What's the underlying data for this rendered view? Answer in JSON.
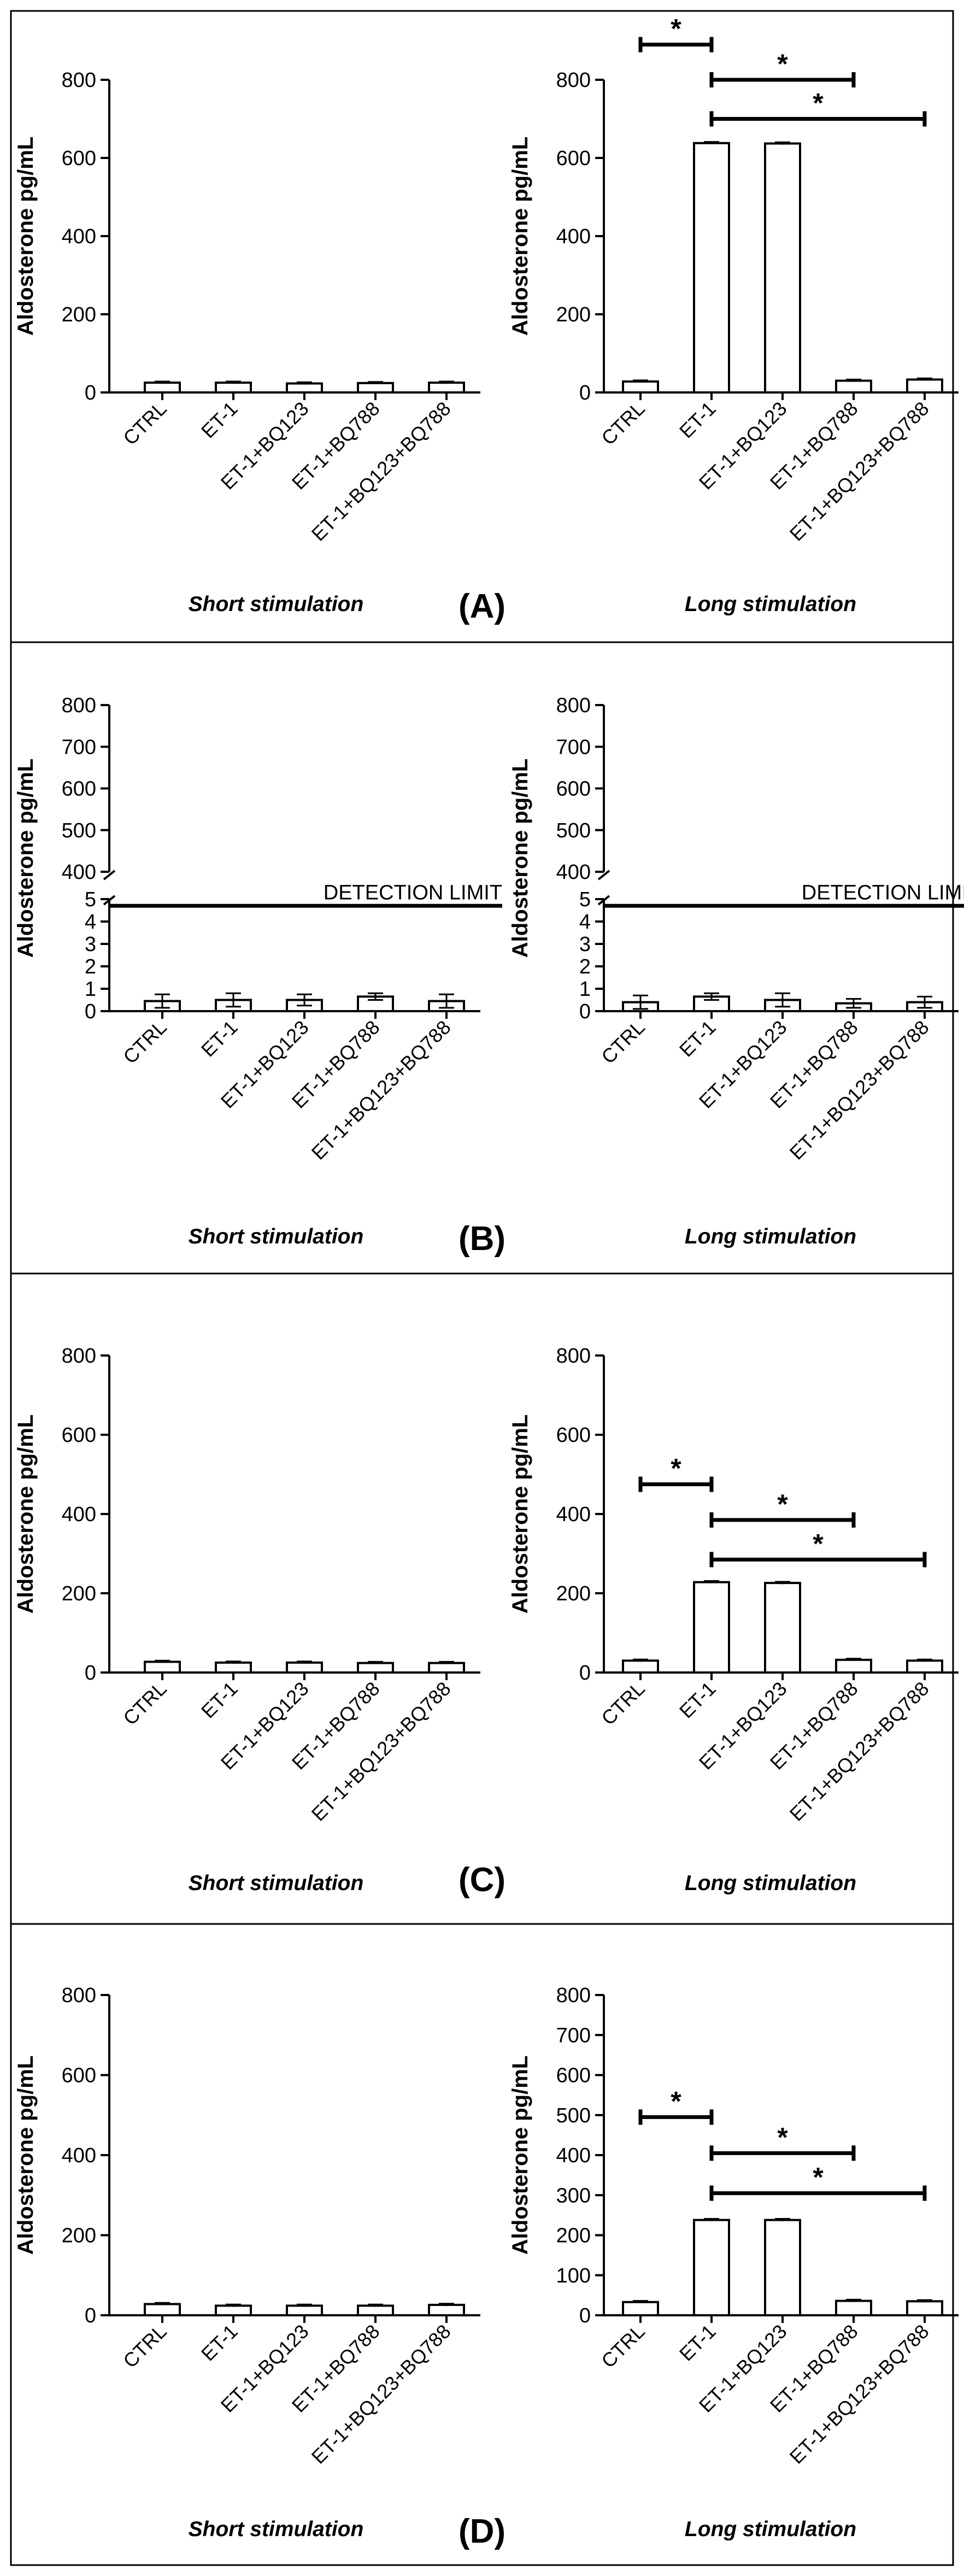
{
  "figure": {
    "ylabel": "Aldosterone pg/mL",
    "categories": [
      "CTRL",
      "ET-1",
      "ET-1+BQ123",
      "ET-1+BQ788",
      "ET-1+BQ123+BQ788"
    ],
    "short_label": "Short stimulation",
    "long_label": "Long stimulation",
    "detection_label": "DETECTION LIMIT",
    "star": "*"
  },
  "chart_data": [
    {
      "panel": "(A)",
      "charts": [
        {
          "type": "bar",
          "title": "Short stimulation",
          "ylabel": "Aldosterone pg/mL",
          "categories": [
            "CTRL",
            "ET-1",
            "ET-1+BQ123",
            "ET-1+BQ788",
            "ET-1+BQ123+BQ788"
          ],
          "values": [
            25,
            25,
            23,
            24,
            25
          ],
          "errors": [
            3,
            3,
            3,
            3,
            3
          ],
          "ylim": [
            0,
            800
          ],
          "yticks": [
            0,
            200,
            400,
            600,
            800
          ],
          "significance": []
        },
        {
          "type": "bar",
          "title": "Long stimulation",
          "ylabel": "Aldosterone pg/mL",
          "categories": [
            "CTRL",
            "ET-1",
            "ET-1+BQ123",
            "ET-1+BQ788",
            "ET-1+BQ123+BQ788"
          ],
          "values": [
            28,
            638,
            637,
            30,
            33
          ],
          "errors": [
            3,
            3,
            3,
            3,
            3
          ],
          "ylim": [
            0,
            800
          ],
          "yticks": [
            0,
            200,
            400,
            600,
            800
          ],
          "significance": [
            {
              "from": 0,
              "to": 1,
              "value": 890,
              "label": "*"
            },
            {
              "from": 1,
              "to": 3,
              "value": 800,
              "label": "*"
            },
            {
              "from": 1,
              "to": 4,
              "value": 700,
              "label": "*"
            }
          ]
        }
      ]
    },
    {
      "panel": "(B)",
      "charts": [
        {
          "type": "bar",
          "title": "Short stimulation",
          "ylabel": "Aldosterone pg/mL",
          "categories": [
            "CTRL",
            "ET-1",
            "ET-1+BQ123",
            "ET-1+BQ788",
            "ET-1+BQ123+BQ788"
          ],
          "values": [
            0.45,
            0.5,
            0.5,
            0.65,
            0.45
          ],
          "errors": [
            0.3,
            0.3,
            0.25,
            0.15,
            0.3
          ],
          "ylim": [
            0,
            800
          ],
          "axis_break": [
            5,
            400
          ],
          "yticks": [
            0,
            1,
            2,
            3,
            4,
            5,
            400,
            500,
            600,
            700,
            800
          ],
          "detection_limit": 4.7,
          "significance": []
        },
        {
          "type": "bar",
          "title": "Long stimulation",
          "ylabel": "Aldosterone pg/mL",
          "categories": [
            "CTRL",
            "ET-1",
            "ET-1+BQ123",
            "ET-1+BQ788",
            "ET-1+BQ123+BQ788"
          ],
          "values": [
            0.4,
            0.65,
            0.5,
            0.35,
            0.4
          ],
          "errors": [
            0.3,
            0.15,
            0.3,
            0.2,
            0.25
          ],
          "ylim": [
            0,
            800
          ],
          "axis_break": [
            5,
            400
          ],
          "yticks": [
            0,
            1,
            2,
            3,
            4,
            5,
            400,
            500,
            600,
            700,
            800
          ],
          "detection_limit": 4.7,
          "significance": []
        }
      ]
    },
    {
      "panel": "(C)",
      "charts": [
        {
          "type": "bar",
          "title": "Short stimulation",
          "ylabel": "Aldosterone pg/mL",
          "categories": [
            "CTRL",
            "ET-1",
            "ET-1+BQ123",
            "ET-1+BQ788",
            "ET-1+BQ123+BQ788"
          ],
          "values": [
            27,
            25,
            25,
            24,
            24
          ],
          "errors": [
            3,
            3,
            3,
            3,
            3
          ],
          "ylim": [
            0,
            800
          ],
          "yticks": [
            0,
            200,
            400,
            600,
            800
          ],
          "significance": []
        },
        {
          "type": "bar",
          "title": "Long stimulation",
          "ylabel": "Aldosterone pg/mL",
          "categories": [
            "CTRL",
            "ET-1",
            "ET-1+BQ123",
            "ET-1+BQ788",
            "ET-1+BQ123+BQ788"
          ],
          "values": [
            30,
            228,
            226,
            32,
            30
          ],
          "errors": [
            3,
            3,
            3,
            3,
            3
          ],
          "ylim": [
            0,
            800
          ],
          "yticks": [
            0,
            200,
            400,
            600,
            800
          ],
          "significance": [
            {
              "from": 0,
              "to": 1,
              "value": 475,
              "label": "*"
            },
            {
              "from": 1,
              "to": 3,
              "value": 385,
              "label": "*"
            },
            {
              "from": 1,
              "to": 4,
              "value": 285,
              "label": "*"
            }
          ]
        }
      ]
    },
    {
      "panel": "(D)",
      "charts": [
        {
          "type": "bar",
          "title": "Short stimulation",
          "ylabel": "Aldosterone pg/mL",
          "categories": [
            "CTRL",
            "ET-1",
            "ET-1+BQ123",
            "ET-1+BQ788",
            "ET-1+BQ123+BQ788"
          ],
          "values": [
            28,
            24,
            24,
            24,
            26
          ],
          "errors": [
            3,
            3,
            3,
            3,
            3
          ],
          "ylim": [
            0,
            800
          ],
          "yticks": [
            0,
            200,
            400,
            600,
            800
          ],
          "significance": []
        },
        {
          "type": "bar",
          "title": "Long stimulation",
          "ylabel": "Aldosterone pg/mL",
          "categories": [
            "CTRL",
            "ET-1",
            "ET-1+BQ123",
            "ET-1+BQ788",
            "ET-1+BQ123+BQ788"
          ],
          "values": [
            33,
            238,
            238,
            36,
            35
          ],
          "errors": [
            3,
            3,
            3,
            3,
            3
          ],
          "ylim": [
            0,
            800
          ],
          "yticks": [
            0,
            100,
            200,
            300,
            400,
            500,
            600,
            700,
            800
          ],
          "significance": [
            {
              "from": 0,
              "to": 1,
              "value": 495,
              "label": "*"
            },
            {
              "from": 1,
              "to": 3,
              "value": 405,
              "label": "*"
            },
            {
              "from": 1,
              "to": 4,
              "value": 305,
              "label": "*"
            }
          ]
        }
      ]
    }
  ]
}
